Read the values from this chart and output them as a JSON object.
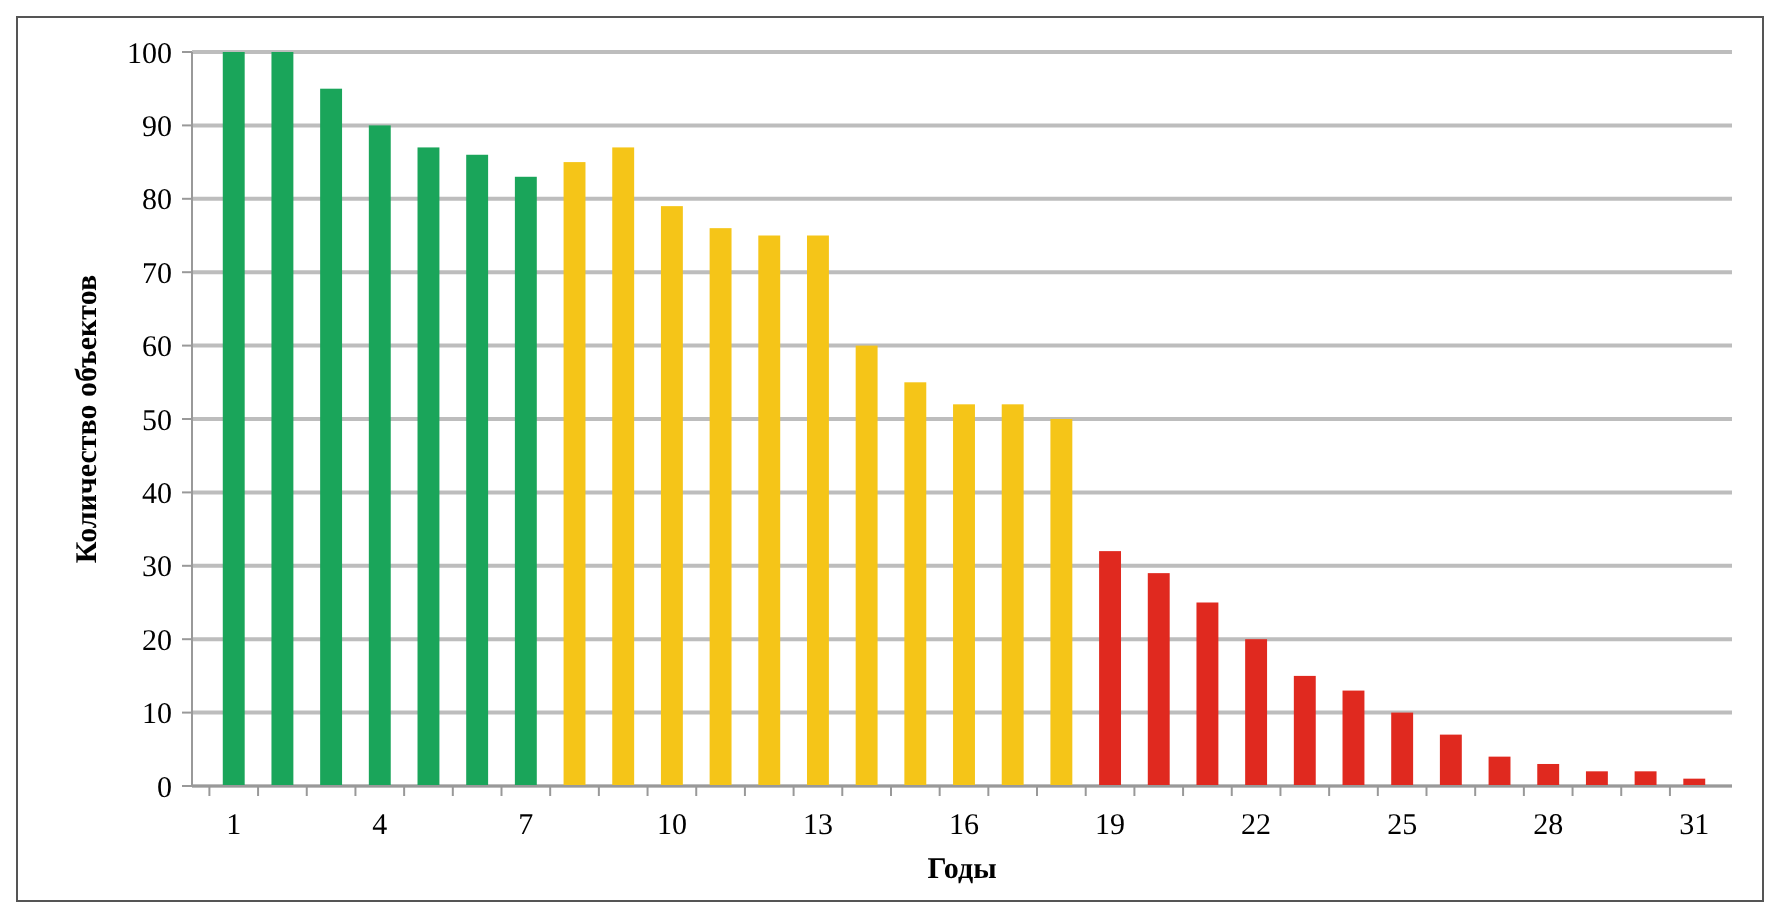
{
  "chart_data": {
    "type": "bar",
    "xlabel": "Годы",
    "ylabel": "Количество объектов",
    "categories": [
      "1",
      null,
      null,
      "4",
      null,
      null,
      "7",
      null,
      null,
      "10",
      null,
      null,
      "13",
      null,
      null,
      "16",
      null,
      null,
      "19",
      null,
      null,
      "22",
      null,
      null,
      "25",
      null,
      null,
      "28",
      null,
      null,
      "31"
    ],
    "values": [
      100,
      100,
      95,
      90,
      87,
      86,
      83,
      85,
      87,
      79,
      76,
      75,
      75,
      60,
      55,
      52,
      52,
      50,
      32,
      29,
      25,
      20,
      15,
      13,
      10,
      7,
      4,
      3,
      2,
      2,
      1
    ],
    "colors": [
      "#1aa55a",
      "#1aa55a",
      "#1aa55a",
      "#1aa55a",
      "#1aa55a",
      "#1aa55a",
      "#1aa55a",
      "#f5c518",
      "#f5c518",
      "#f5c518",
      "#f5c518",
      "#f5c518",
      "#f5c518",
      "#f5c518",
      "#f5c518",
      "#f5c518",
      "#f5c518",
      "#f5c518",
      "#e0291f",
      "#e0291f",
      "#e0291f",
      "#e0291f",
      "#e0291f",
      "#e0291f",
      "#e0291f",
      "#e0291f",
      "#e0291f",
      "#e0291f",
      "#e0291f",
      "#e0291f",
      "#e0291f"
    ],
    "ylim": [
      0,
      100
    ],
    "yticks": [
      0,
      10,
      20,
      30,
      40,
      50,
      60,
      70,
      80,
      90,
      100
    ],
    "grid": "y"
  }
}
